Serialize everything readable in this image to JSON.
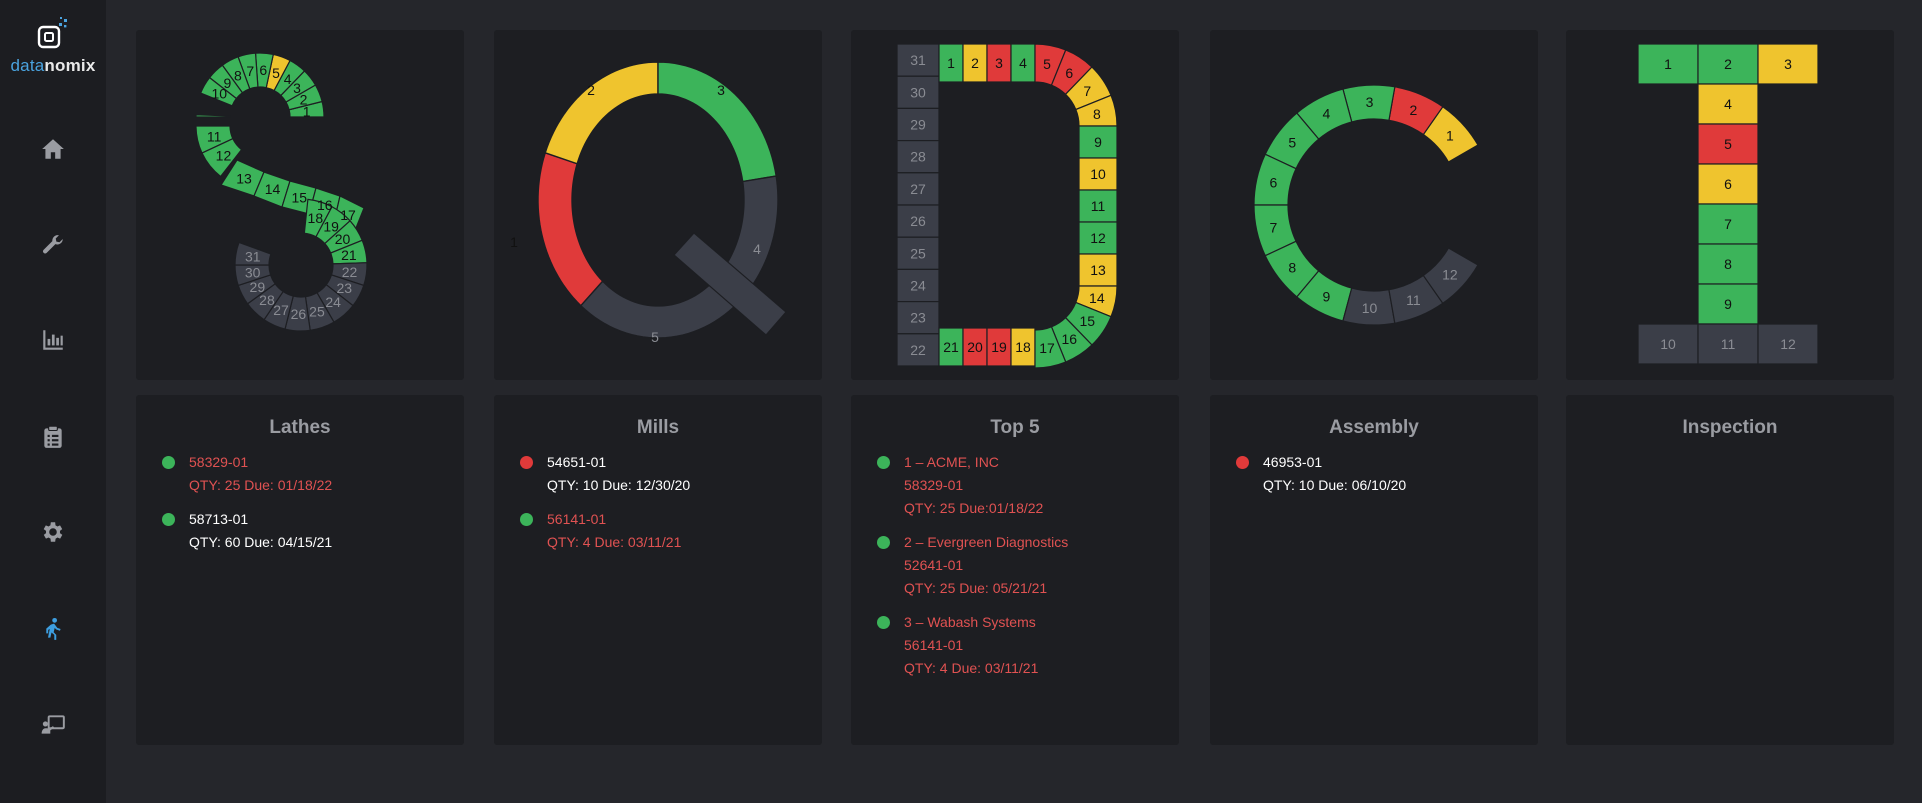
{
  "brand": {
    "prefix": "data",
    "suffix": "nomix"
  },
  "colors": {
    "green": "#3cb45a",
    "yellow": "#efc42e",
    "red": "#e03a3a",
    "gray": "#3b3e48",
    "red_text": "#e05252"
  },
  "nav": [
    {
      "icon": "home-icon",
      "active": false
    },
    {
      "icon": "wrench-icon",
      "active": false
    },
    {
      "icon": "bar-chart-icon",
      "active": false
    },
    {
      "icon": "clipboard-icon",
      "active": false
    },
    {
      "icon": "gear-icon",
      "active": false
    },
    {
      "icon": "walking-person-icon",
      "active": true
    },
    {
      "icon": "presenter-board-icon",
      "active": false
    }
  ],
  "letters": {
    "S": {
      "days": [
        "green",
        "green",
        "green",
        "green",
        "yellow",
        "green",
        "green",
        "green",
        "green",
        "green",
        "green",
        "green",
        "green",
        "green",
        "green",
        "green",
        "green",
        "green",
        "green",
        "green",
        "green",
        "gray",
        "gray",
        "gray",
        "gray",
        "gray",
        "gray",
        "gray",
        "gray",
        "gray",
        "gray"
      ]
    },
    "Q": {
      "segments": [
        {
          "label": "1",
          "status": "red"
        },
        {
          "label": "2",
          "status": "yellow"
        },
        {
          "label": "3",
          "status": "green"
        },
        {
          "label": "4",
          "status": "gray"
        },
        {
          "label": "5",
          "status": "gray"
        }
      ]
    },
    "D": {
      "days": [
        "green",
        "yellow",
        "red",
        "green",
        "red",
        "red",
        "yellow",
        "yellow",
        "green",
        "yellow",
        "green",
        "green",
        "yellow",
        "yellow",
        "green",
        "green",
        "green",
        "yellow",
        "red",
        "red",
        "green",
        "gray",
        "gray",
        "gray",
        "gray",
        "gray",
        "gray",
        "gray",
        "gray",
        "gray",
        "gray"
      ]
    },
    "C": {
      "segments": [
        "yellow",
        "red",
        "green",
        "green",
        "green",
        "green",
        "green",
        "green",
        "green",
        "gray",
        "gray",
        "gray"
      ]
    },
    "T": {
      "segments": [
        "green",
        "green",
        "yellow",
        "yellow",
        "red",
        "yellow",
        "green",
        "green",
        "green",
        "gray",
        "gray",
        "gray"
      ]
    }
  },
  "panels": [
    {
      "title": "Lathes",
      "items": [
        {
          "status": "green",
          "text_color": "red",
          "lines": [
            "58329-01",
            "QTY: 25 Due: 01/18/22"
          ]
        },
        {
          "status": "green",
          "text_color": "white",
          "lines": [
            "58713-01",
            "QTY: 60 Due: 04/15/21"
          ]
        }
      ]
    },
    {
      "title": "Mills",
      "items": [
        {
          "status": "red",
          "text_color": "white",
          "lines": [
            "54651-01",
            "QTY: 10 Due: 12/30/20"
          ]
        },
        {
          "status": "green",
          "text_color": "red",
          "lines": [
            "56141-01",
            "QTY: 4 Due: 03/11/21"
          ]
        }
      ]
    },
    {
      "title": "Top 5",
      "items": [
        {
          "status": "green",
          "text_color": "red",
          "lines": [
            "1 – ACME, INC",
            "58329-01",
            "QTY: 25 Due:01/18/22"
          ]
        },
        {
          "status": "green",
          "text_color": "red",
          "lines": [
            "2 – Evergreen Diagnostics",
            "52641-01",
            "QTY: 25 Due: 05/21/21"
          ]
        },
        {
          "status": "green",
          "text_color": "red",
          "lines": [
            "3 – Wabash Systems",
            "56141-01",
            "QTY: 4 Due: 03/11/21"
          ]
        }
      ]
    },
    {
      "title": "Assembly",
      "items": [
        {
          "status": "red",
          "text_color": "white",
          "lines": [
            "46953-01",
            "QTY: 10 Due: 06/10/20"
          ]
        }
      ]
    },
    {
      "title": "Inspection",
      "items": []
    }
  ]
}
